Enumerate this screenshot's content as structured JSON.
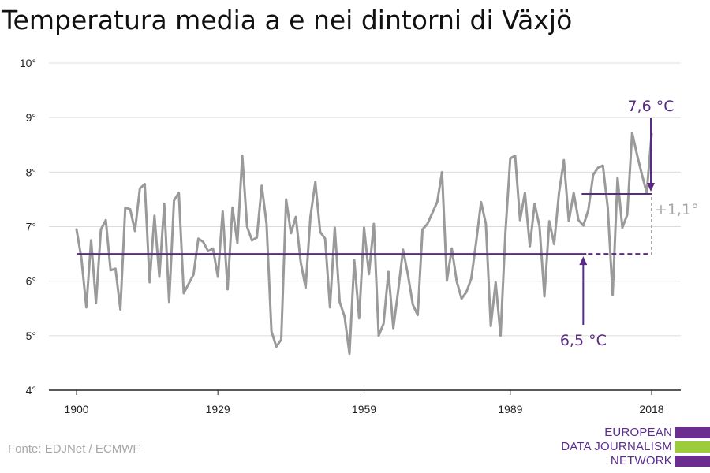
{
  "header": {
    "title": "Temperatura media a e nei dintorni di Växjö"
  },
  "footer": {
    "source": "Fonte: EDJNet / ECMWF",
    "logo_lines": [
      "EUROPEAN",
      "DATA JOURNALISM",
      "NETWORK"
    ],
    "logo_colors": [
      "#6b2d8f",
      "#9ccb3b",
      "#6b2d8f"
    ]
  },
  "chart_data": {
    "type": "line",
    "title": "Temperatura media a e nei dintorni di Växjö",
    "xlabel": "",
    "ylabel": "",
    "xlim": [
      1900,
      2018
    ],
    "ylim": [
      4,
      10
    ],
    "x_ticks": [
      1900,
      1929,
      1959,
      1989,
      2018
    ],
    "x_tick_labels": [
      "1900",
      "1929",
      "1959",
      "1989",
      "2018"
    ],
    "y_ticks": [
      4,
      5,
      6,
      7,
      8,
      9,
      10
    ],
    "y_tick_labels": [
      "4°",
      "5°",
      "6°",
      "7°",
      "8°",
      "9°",
      "10°"
    ],
    "grid": true,
    "series": [
      {
        "color": "#9a9a9a",
        "x": [
          1900,
          1901,
          1902,
          1903,
          1904,
          1905,
          1906,
          1907,
          1908,
          1909,
          1910,
          1911,
          1912,
          1913,
          1914,
          1915,
          1916,
          1917,
          1918,
          1919,
          1920,
          1921,
          1922,
          1923,
          1924,
          1925,
          1926,
          1927,
          1928,
          1929,
          1930,
          1931,
          1932,
          1933,
          1934,
          1935,
          1936,
          1937,
          1938,
          1939,
          1940,
          1941,
          1942,
          1943,
          1944,
          1945,
          1946,
          1947,
          1948,
          1949,
          1950,
          1951,
          1952,
          1953,
          1954,
          1955,
          1956,
          1957,
          1958,
          1959,
          1960,
          1961,
          1962,
          1963,
          1964,
          1965,
          1966,
          1967,
          1968,
          1969,
          1970,
          1971,
          1972,
          1973,
          1974,
          1975,
          1976,
          1977,
          1978,
          1979,
          1980,
          1981,
          1982,
          1983,
          1984,
          1985,
          1986,
          1987,
          1988,
          1989,
          1990,
          1991,
          1992,
          1993,
          1994,
          1995,
          1996,
          1997,
          1998,
          1999,
          2000,
          2001,
          2002,
          2003,
          2004,
          2005,
          2006,
          2007,
          2008,
          2009,
          2010,
          2011,
          2012,
          2013,
          2014,
          2015,
          2016,
          2017,
          2018
        ],
        "values": [
          6.95,
          6.42,
          5.52,
          6.75,
          5.6,
          6.95,
          7.12,
          6.2,
          6.23,
          5.48,
          7.35,
          7.32,
          6.92,
          7.7,
          7.78,
          5.98,
          7.2,
          6.08,
          7.42,
          5.62,
          7.48,
          7.62,
          5.78,
          5.95,
          6.12,
          6.78,
          6.72,
          6.55,
          6.6,
          6.08,
          7.28,
          5.85,
          7.35,
          6.7,
          8.3,
          7.0,
          6.75,
          6.8,
          7.75,
          7.05,
          5.08,
          4.8,
          4.93,
          7.5,
          6.88,
          7.18,
          6.35,
          5.88,
          7.18,
          7.82,
          6.9,
          6.78,
          5.52,
          6.98,
          5.62,
          5.35,
          4.67,
          6.38,
          5.32,
          6.98,
          6.13,
          7.05,
          5.0,
          5.22,
          6.17,
          5.14,
          5.82,
          6.58,
          6.12,
          5.57,
          5.38,
          6.95,
          7.05,
          7.25,
          7.45,
          8.0,
          6.01,
          6.6,
          6.0,
          5.68,
          5.8,
          6.05,
          6.72,
          7.45,
          7.05,
          5.18,
          5.98,
          5.0,
          6.9,
          8.25,
          8.3,
          7.12,
          7.62,
          6.64,
          7.42,
          7.0,
          5.72,
          7.1,
          6.68,
          7.62,
          8.22,
          7.1,
          7.62,
          7.12,
          7.02,
          7.3,
          7.95,
          8.08,
          8.12,
          7.35,
          5.74,
          7.9,
          6.98,
          7.22,
          8.72,
          8.32,
          7.96,
          7.62,
          8.7
        ]
      }
    ],
    "baseline": {
      "color": "#5b2a86",
      "avg_early": 6.5,
      "avg_recent": 7.6,
      "avg_early_label": "6,5 °C",
      "avg_recent_label": "7,6 °C",
      "diff_label": "+1,1°",
      "diff_color": "#a8a8a8",
      "recent_period": [
        2003,
        2018
      ]
    }
  }
}
